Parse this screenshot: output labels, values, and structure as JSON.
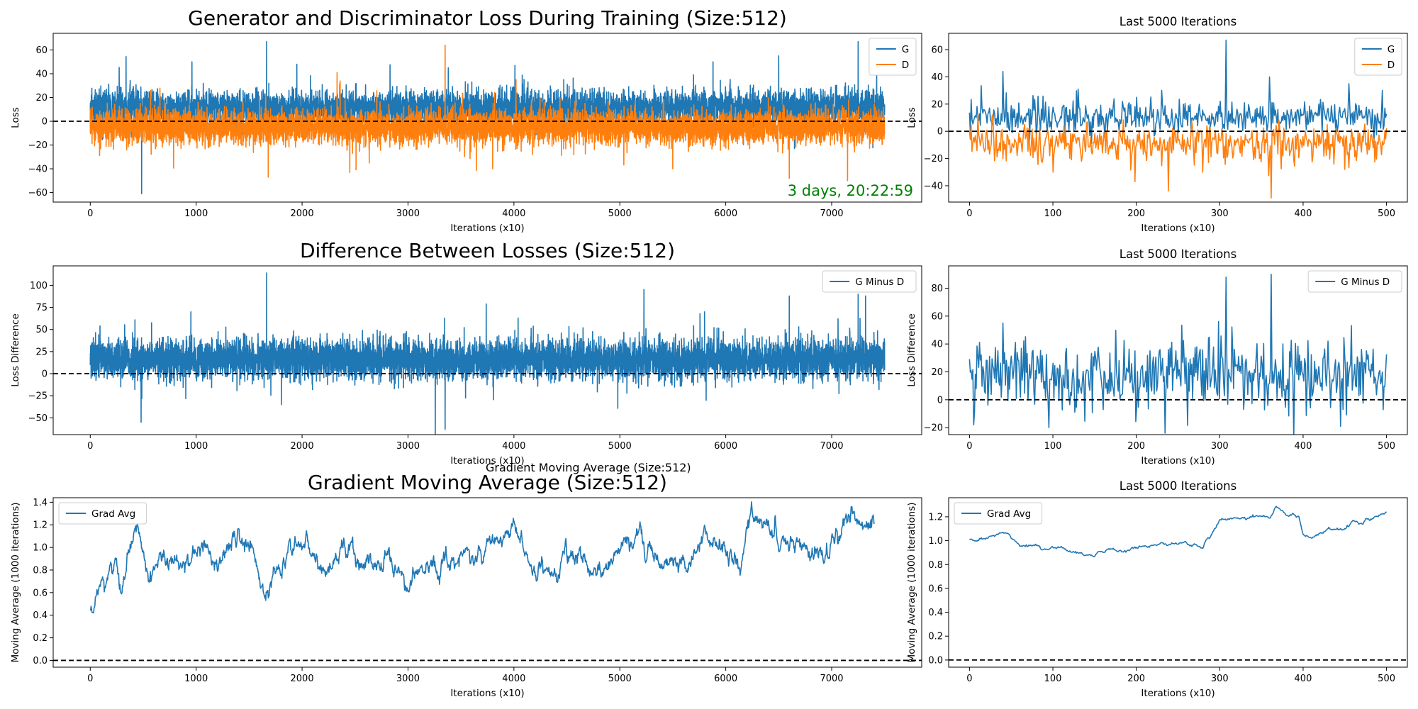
{
  "chart_data": [
    {
      "id": "loss-full",
      "type": "line",
      "title": "Generator and Discriminator Loss During Training (Size:512)",
      "xlabel": "Iterations (x10)",
      "ylabel": "Loss",
      "xlim": [
        -350,
        7850
      ],
      "ylim": [
        -68,
        74
      ],
      "xticks": [
        0,
        1000,
        2000,
        3000,
        4000,
        5000,
        6000,
        7000
      ],
      "yticks": [
        -60,
        -40,
        -20,
        0,
        20,
        40,
        60
      ],
      "hline": 0,
      "legend": "top-right",
      "annotation": "3 days, 20:22:59",
      "series": [
        {
          "name": "G",
          "color": "#1f77b4",
          "x_range": [
            0,
            7500
          ],
          "n": 7500,
          "mean": 11,
          "std": 7,
          "seed": 11,
          "spikes": [
            [
              485,
              -61
            ],
            [
              1665,
              67
            ],
            [
              7250,
              67
            ],
            [
              960,
              50
            ],
            [
              3380,
              45
            ],
            [
              5880,
              50
            ],
            [
              6500,
              55
            ],
            [
              1950,
              48
            ],
            [
              4010,
              47
            ]
          ]
        },
        {
          "name": "D",
          "color": "#ff7f0e",
          "x_range": [
            0,
            7500
          ],
          "n": 7500,
          "mean": -5,
          "std": 7,
          "seed": 23,
          "spikes": [
            [
              3350,
              64
            ],
            [
              2330,
              41
            ],
            [
              4020,
              35
            ],
            [
              1680,
              -47
            ],
            [
              6600,
              -48
            ],
            [
              7150,
              -50
            ],
            [
              2450,
              -43
            ],
            [
              3800,
              -40
            ],
            [
              5500,
              -40
            ]
          ]
        }
      ]
    },
    {
      "id": "loss-last",
      "type": "line",
      "title": "Last 5000 Iterations",
      "xlabel": "Iterations (x10)",
      "ylabel": "Loss",
      "xlim": [
        -25,
        525
      ],
      "ylim": [
        -52,
        72
      ],
      "xticks": [
        0,
        100,
        200,
        300,
        400,
        500
      ],
      "yticks": [
        -40,
        -20,
        0,
        20,
        40,
        60
      ],
      "hline": 0,
      "legend": "top-right",
      "series": [
        {
          "name": "G",
          "color": "#1f77b4",
          "x_range": [
            0,
            500
          ],
          "n": 500,
          "mean": 11,
          "std": 6,
          "seed": 31,
          "spikes": [
            [
              308,
              67
            ],
            [
              40,
              44
            ],
            [
              130,
              31
            ],
            [
              455,
              35
            ],
            [
              360,
              40
            ],
            [
              230,
              30
            ],
            [
              495,
              30
            ]
          ]
        },
        {
          "name": "D",
          "color": "#ff7f0e",
          "x_range": [
            0,
            500
          ],
          "n": 500,
          "mean": -8,
          "std": 7,
          "seed": 37,
          "spikes": [
            [
              362,
              -49
            ],
            [
              198,
              -37
            ],
            [
              10,
              13
            ],
            [
              280,
              -30
            ],
            [
              100,
              -30
            ],
            [
              450,
              -28
            ]
          ]
        }
      ]
    },
    {
      "id": "diff-full",
      "type": "line",
      "title": "Difference Between Losses (Size:512)",
      "xlabel": "Iterations (x10)",
      "ylabel": "Loss Difference",
      "xlim": [
        -350,
        7850
      ],
      "ylim": [
        -69,
        122
      ],
      "xticks": [
        0,
        1000,
        2000,
        3000,
        4000,
        5000,
        6000,
        7000
      ],
      "yticks": [
        -50,
        -25,
        0,
        25,
        50,
        75,
        100
      ],
      "hline": 0,
      "legend": "top-right",
      "series": [
        {
          "name": "G Minus D",
          "color": "#1f77b4",
          "x_range": [
            0,
            7500
          ],
          "n": 7500,
          "mean": 16,
          "std": 11,
          "seed": 41,
          "spikes": [
            [
              1665,
              114
            ],
            [
              3350,
              -63
            ],
            [
              480,
              -55
            ],
            [
              7250,
              90
            ],
            [
              7320,
              88
            ],
            [
              6600,
              88
            ],
            [
              5800,
              70
            ],
            [
              950,
              70
            ],
            [
              4040,
              63
            ]
          ]
        }
      ]
    },
    {
      "id": "diff-last",
      "type": "line",
      "title": "Last 5000 Iterations",
      "xlabel": "Iterations (x10)",
      "ylabel": "Loss Difference",
      "xlim": [
        -25,
        525
      ],
      "ylim": [
        -25,
        96
      ],
      "xticks": [
        0,
        100,
        200,
        300,
        400,
        500
      ],
      "yticks": [
        -20,
        0,
        20,
        40,
        60,
        80
      ],
      "hline": 0,
      "legend": "top-right",
      "series": [
        {
          "name": "G Minus D",
          "color": "#1f77b4",
          "x_range": [
            0,
            500
          ],
          "n": 500,
          "mean": 17,
          "std": 12,
          "seed": 53,
          "spikes": [
            [
              308,
              88
            ],
            [
              362,
              90
            ],
            [
              95,
              65
            ],
            [
              40,
              55
            ],
            [
              445,
              -19
            ],
            [
              95,
              -20
            ],
            [
              5,
              -18
            ]
          ]
        }
      ]
    },
    {
      "id": "grad-full",
      "type": "line",
      "title": "Gradient Moving Average (Size:512)",
      "xlabel": "Iterations (x10)",
      "ylabel": "Moving Average (1000 iterations)",
      "xlim": [
        -350,
        7850
      ],
      "ylim": [
        -0.06,
        1.44
      ],
      "xticks": [
        0,
        1000,
        2000,
        3000,
        4000,
        5000,
        6000,
        7000
      ],
      "yticks": [
        0.0,
        0.2,
        0.4,
        0.6,
        0.8,
        1.0,
        1.2,
        1.4
      ],
      "hline": 0,
      "legend": "top-left",
      "series": [
        {
          "name": "Grad Avg",
          "color": "#1f77b4",
          "x_range": [
            0,
            7400
          ],
          "n": 1850,
          "noise": 0.03,
          "seed": 61,
          "anchors": [
            [
              0,
              0.45
            ],
            [
              150,
              0.72
            ],
            [
              230,
              0.9
            ],
            [
              300,
              0.62
            ],
            [
              380,
              1.0
            ],
            [
              450,
              1.22
            ],
            [
              550,
              0.8
            ],
            [
              700,
              0.88
            ],
            [
              900,
              0.8
            ],
            [
              1050,
              0.95
            ],
            [
              1200,
              0.82
            ],
            [
              1400,
              1.12
            ],
            [
              1550,
              0.9
            ],
            [
              1680,
              0.63
            ],
            [
              1850,
              0.88
            ],
            [
              2000,
              1.03
            ],
            [
              2200,
              0.77
            ],
            [
              2400,
              1.0
            ],
            [
              2600,
              0.8
            ],
            [
              2800,
              0.87
            ],
            [
              3000,
              0.72
            ],
            [
              3200,
              0.8
            ],
            [
              3500,
              0.9
            ],
            [
              3800,
              1.05
            ],
            [
              4000,
              1.18
            ],
            [
              4200,
              0.82
            ],
            [
              4400,
              0.8
            ],
            [
              4600,
              0.97
            ],
            [
              4800,
              0.8
            ],
            [
              5000,
              0.93
            ],
            [
              5200,
              1.08
            ],
            [
              5400,
              0.9
            ],
            [
              5600,
              0.8
            ],
            [
              5800,
              1.13
            ],
            [
              6000,
              0.95
            ],
            [
              6150,
              0.85
            ],
            [
              6250,
              1.37
            ],
            [
              6400,
              1.13
            ],
            [
              6700,
              1.0
            ],
            [
              6900,
              0.92
            ],
            [
              7200,
              1.28
            ],
            [
              7300,
              1.08
            ],
            [
              7400,
              1.24
            ]
          ]
        }
      ]
    },
    {
      "id": "grad-last",
      "type": "line",
      "title": "Last 5000 Iterations",
      "xlabel": "Iterations (x10)",
      "ylabel": "Moving Average (1000 iterations)",
      "xlim": [
        -25,
        525
      ],
      "ylim": [
        -0.06,
        1.36
      ],
      "xticks": [
        0,
        100,
        200,
        300,
        400,
        500
      ],
      "yticks": [
        0.0,
        0.2,
        0.4,
        0.6,
        0.8,
        1.0,
        1.2
      ],
      "hline": 0,
      "legend": "top-left",
      "series": [
        {
          "name": "Grad Avg",
          "color": "#1f77b4",
          "x_range": [
            0,
            500
          ],
          "n": 500,
          "noise": 0.006,
          "seed": 71,
          "anchors": [
            [
              0,
              1.01
            ],
            [
              20,
              1.02
            ],
            [
              40,
              1.07
            ],
            [
              60,
              0.96
            ],
            [
              100,
              0.94
            ],
            [
              150,
              0.88
            ],
            [
              200,
              0.95
            ],
            [
              260,
              0.98
            ],
            [
              280,
              0.95
            ],
            [
              300,
              1.18
            ],
            [
              320,
              1.2
            ],
            [
              340,
              1.22
            ],
            [
              360,
              1.2
            ],
            [
              368,
              1.29
            ],
            [
              380,
              1.22
            ],
            [
              395,
              1.2
            ],
            [
              400,
              1.05
            ],
            [
              410,
              1.03
            ],
            [
              430,
              1.1
            ],
            [
              450,
              1.1
            ],
            [
              460,
              1.17
            ],
            [
              470,
              1.12
            ],
            [
              490,
              1.2
            ],
            [
              500,
              1.24
            ]
          ]
        }
      ]
    }
  ]
}
